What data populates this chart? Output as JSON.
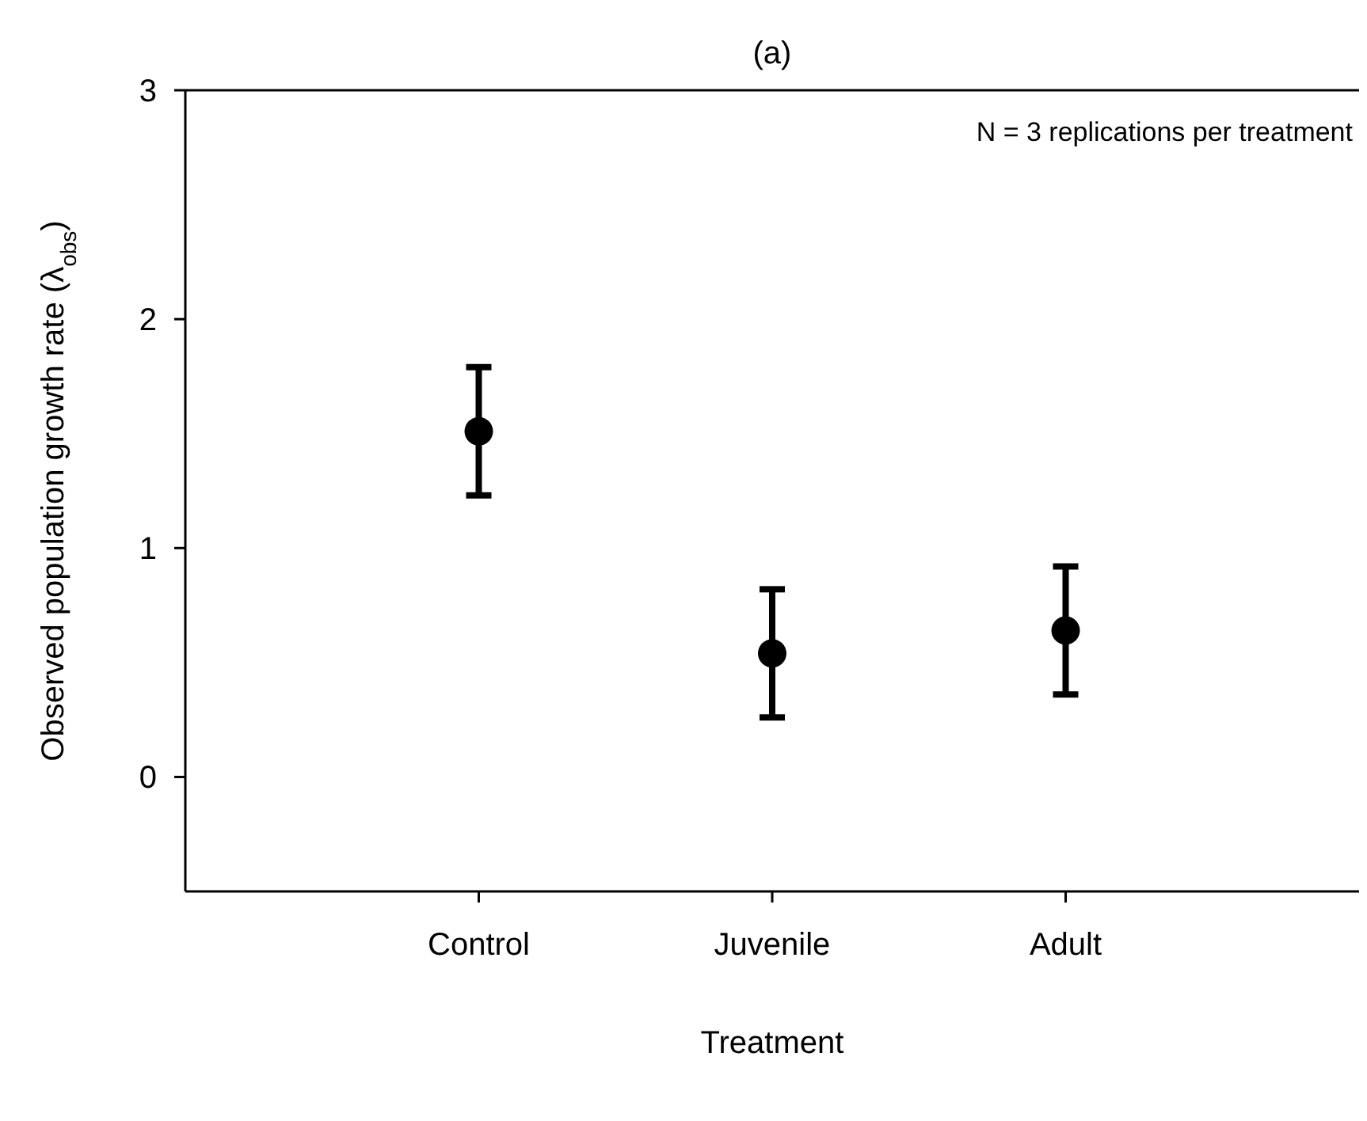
{
  "chart_data": {
    "type": "scatter",
    "title": "(a)",
    "xlabel": "Treatment",
    "ylabel": "Observed population growth rate (λ$_{obs}$)",
    "annotations": [
      "N = 3 replications per treatment"
    ],
    "categories": [
      "Control",
      "Juvenile",
      "Adult"
    ],
    "values": [
      1.51,
      0.54,
      0.64
    ],
    "errors": [
      0.28,
      0.28,
      0.28
    ],
    "color": "#000000",
    "marker": "circle",
    "ylim": [
      -0.5,
      3
    ],
    "yticks": [
      0,
      1,
      2,
      3
    ],
    "grid": false
  }
}
